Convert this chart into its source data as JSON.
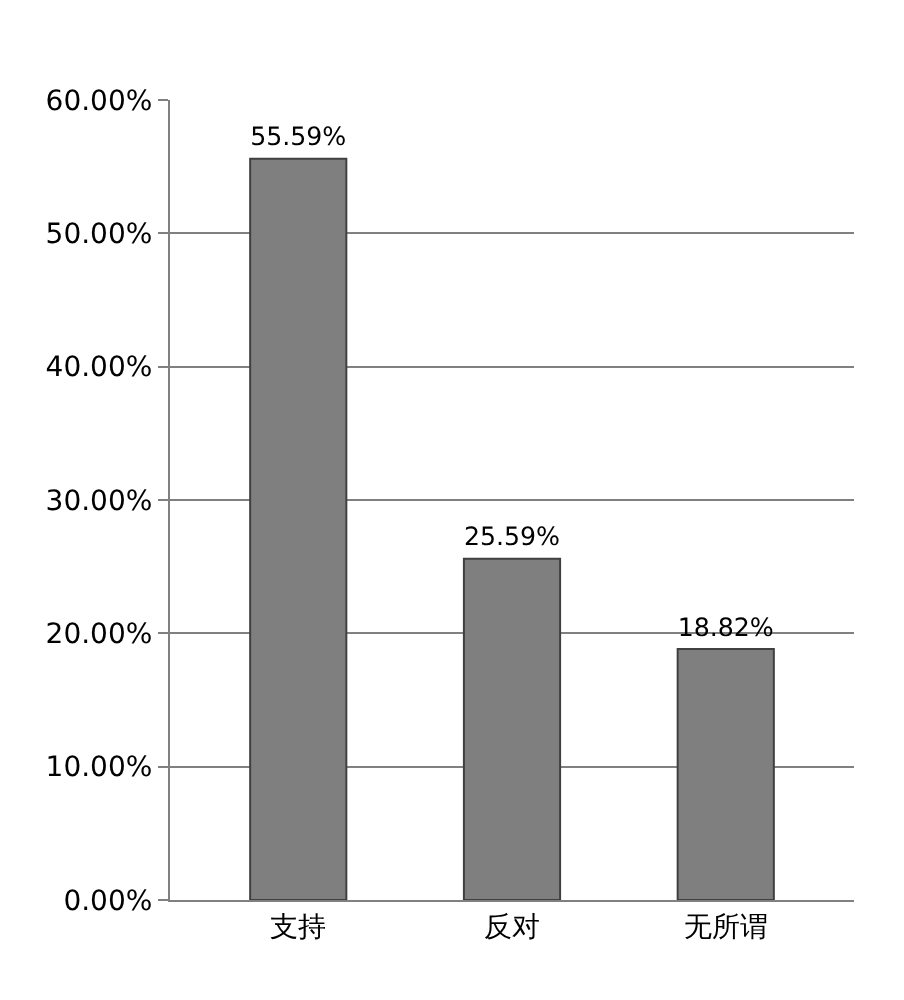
{
  "chart_data": {
    "type": "bar",
    "categories": [
      "支持",
      "反对",
      "无所谓"
    ],
    "values": [
      55.59,
      25.59,
      18.82
    ],
    "value_labels": [
      "55.59%",
      "25.59%",
      "18.82%"
    ],
    "color": "#7f7f7f",
    "ylim": [
      0,
      60
    ],
    "yticks": [
      {
        "value": 0,
        "label": "0.00%"
      },
      {
        "value": 10,
        "label": "10.00%"
      },
      {
        "value": 20,
        "label": "20.00%"
      },
      {
        "value": 30,
        "label": "30.00%"
      },
      {
        "value": 40,
        "label": "40.00%"
      },
      {
        "value": 50,
        "label": "50.00%"
      },
      {
        "value": 60,
        "label": "60.00%"
      }
    ],
    "grid": "y",
    "legend": false
  }
}
